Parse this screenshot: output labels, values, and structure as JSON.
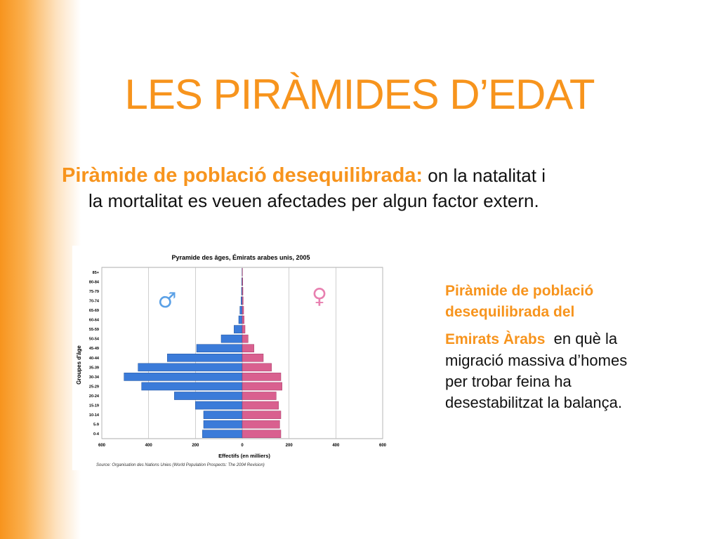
{
  "slide": {
    "title": "LES PIRÀMIDES D’EDAT",
    "intro_highlight": "Piràmide de població desequilibrada:",
    "intro_rest_1": " on la natalitat i",
    "intro_rest_2": "la mortalitat es veuen afectades per algun factor extern.",
    "side_highlight_1": "Piràmide de població",
    "side_highlight_2": "desequilibrada del",
    "side_highlight_3": "Emirats Àrabs",
    "side_rest_1": "  en què la",
    "side_rest_2": "migració massiva d’homes",
    "side_rest_3": "per trobar feina ha",
    "side_rest_4": "desestabilitzat la balança."
  },
  "colors": {
    "accent": "#f7941d",
    "male": "#3b7bd9",
    "female": "#d9608f"
  },
  "chart_data": {
    "type": "bar",
    "orientation": "horizontal-population-pyramid",
    "title": "Pyramide des âges, Émirats arabes unis, 2005",
    "xlabel": "Effectifs (en milliers)",
    "ylabel": "Groupes d'âge",
    "source": "Source: Organisation des Nations Unies (World Population Prospects: The 2004 Revision)",
    "categories": [
      "0-4",
      "5-9",
      "10-14",
      "15-19",
      "20-24",
      "25-29",
      "30-34",
      "35-39",
      "40-44",
      "45-49",
      "50-54",
      "55-59",
      "60-64",
      "65-69",
      "70-74",
      "75-79",
      "80-84",
      "85+"
    ],
    "xlim": [
      -600,
      600
    ],
    "xticks": [
      600,
      400,
      200,
      0,
      200,
      400,
      600
    ],
    "male_symbol": "♂",
    "female_symbol": "♀",
    "series": [
      {
        "values": [
          170,
          165,
          165,
          200,
          290,
          430,
          505,
          445,
          320,
          195,
          90,
          35,
          15,
          10,
          5,
          3,
          2,
          1
        ]
      },
      {
        "values": [
          165,
          160,
          165,
          155,
          145,
          170,
          165,
          125,
          90,
          50,
          25,
          12,
          8,
          6,
          4,
          3,
          2,
          1
        ]
      }
    ]
  }
}
